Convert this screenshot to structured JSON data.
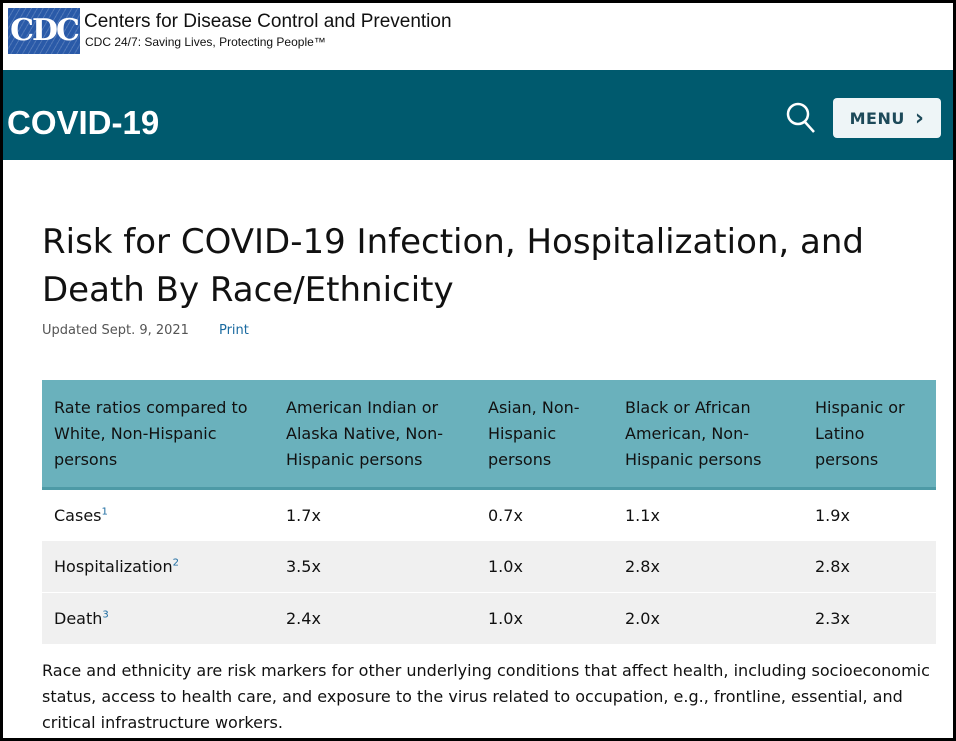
{
  "brand": {
    "logo": "CDC",
    "org": "Centers for Disease Control and Prevention",
    "tagline": "CDC 24/7: Saving Lives, Protecting People™"
  },
  "header": {
    "title": "COVID-19",
    "menu_label": "MENU",
    "menu_chevron": "›"
  },
  "page": {
    "title": "Risk for COVID-19 Infection, Hospitalization, and Death By Race/Ethnicity",
    "updated": "Updated Sept. 9, 2021",
    "print": "Print"
  },
  "table": {
    "headers": [
      "Rate ratios compared to White, Non-Hispanic persons",
      "American Indian or Alaska Native, Non-Hispanic persons",
      "Asian, Non-Hispanic persons",
      "Black or African American, Non-Hispanic persons",
      "Hispanic or Latino persons"
    ],
    "rows": [
      {
        "label": "Cases",
        "sup": "1",
        "values": [
          "1.7x",
          "0.7x",
          "1.1x",
          "1.9x"
        ]
      },
      {
        "label": "Hospitalization",
        "sup": "2",
        "values": [
          "3.5x",
          "1.0x",
          "2.8x",
          "2.8x"
        ]
      },
      {
        "label": "Death",
        "sup": "3",
        "values": [
          "2.4x",
          "1.0x",
          "2.0x",
          "2.3x"
        ]
      }
    ]
  },
  "note": "Race and ethnicity are risk markers for other underlying conditions that affect health, including socioeconomic status, access to health care, and exposure to the virus related to occupation, e.g., frontline, essential, and critical infrastructure workers."
}
